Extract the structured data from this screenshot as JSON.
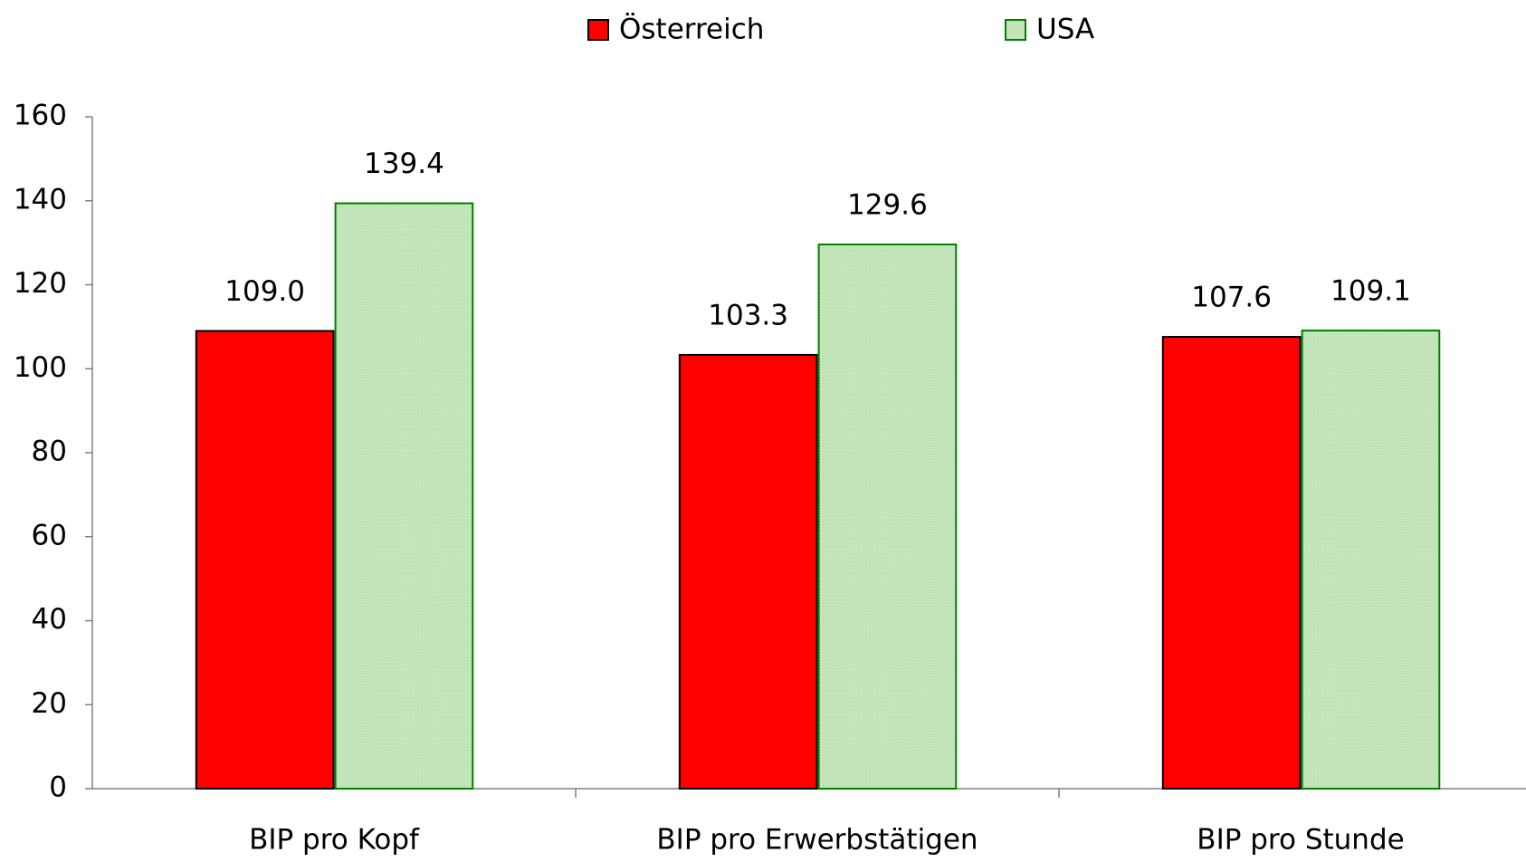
{
  "chart_data": {
    "type": "bar",
    "categories": [
      "BIP pro Kopf",
      "BIP pro Erwerbstätigen",
      "BIP pro Stunde"
    ],
    "series": [
      {
        "name": "Österreich",
        "color": "#ff0000",
        "values": [
          109.0,
          103.3,
          107.6
        ],
        "value_labels": [
          "109.0",
          "103.3",
          "107.6"
        ]
      },
      {
        "name": "USA",
        "color": "#c6e6bd",
        "values": [
          139.4,
          129.6,
          109.1
        ],
        "value_labels": [
          "139.4",
          "129.6",
          "109.1"
        ]
      }
    ],
    "ylim": [
      0,
      160
    ],
    "yticks": [
      0,
      20,
      40,
      60,
      80,
      100,
      120,
      140,
      160
    ],
    "grid": false,
    "legend": "top"
  }
}
